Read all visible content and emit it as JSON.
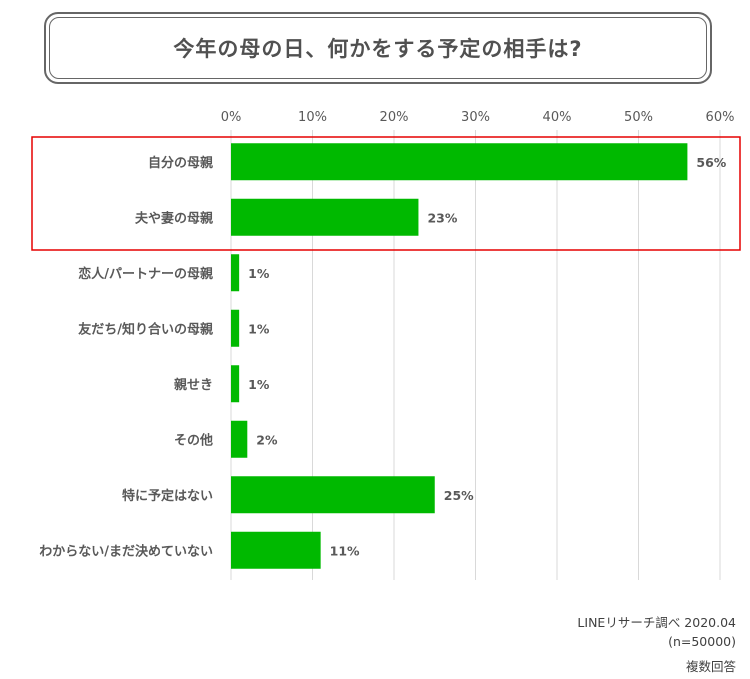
{
  "title": "今年の母の日、何かをする予定の相手は?",
  "chart_data": {
    "type": "bar",
    "orientation": "horizontal",
    "title": "今年の母の日、何かをする予定の相手は?",
    "categories": [
      "自分の母親",
      "夫や妻の母親",
      "恋人/パートナーの母親",
      "友だち/知り合いの母親",
      "親せき",
      "その他",
      "特に予定はない",
      "わからない/まだ決めていない"
    ],
    "values": [
      56,
      23,
      1,
      1,
      1,
      2,
      25,
      11
    ],
    "value_labels": [
      "56%",
      "23%",
      "1%",
      "1%",
      "1%",
      "2%",
      "25%",
      "11%"
    ],
    "xlim": [
      0,
      60
    ],
    "xticks": [
      0,
      10,
      20,
      30,
      40,
      50,
      60
    ],
    "xtick_labels": [
      "0%",
      "10%",
      "20%",
      "30%",
      "40%",
      "50%",
      "60%"
    ],
    "x_axis_position": "top",
    "grid": true,
    "highlight_categories": [
      "自分の母親",
      "夫や妻の母親"
    ],
    "colors": {
      "bar": "#00b900",
      "grid": "#d9d9d9",
      "highlight_box": "#e60000",
      "label": "#595959"
    }
  },
  "footer": {
    "source": "LINEリサーチ調べ 2020.04",
    "sample": "(n=50000)",
    "note": "複数回答"
  }
}
